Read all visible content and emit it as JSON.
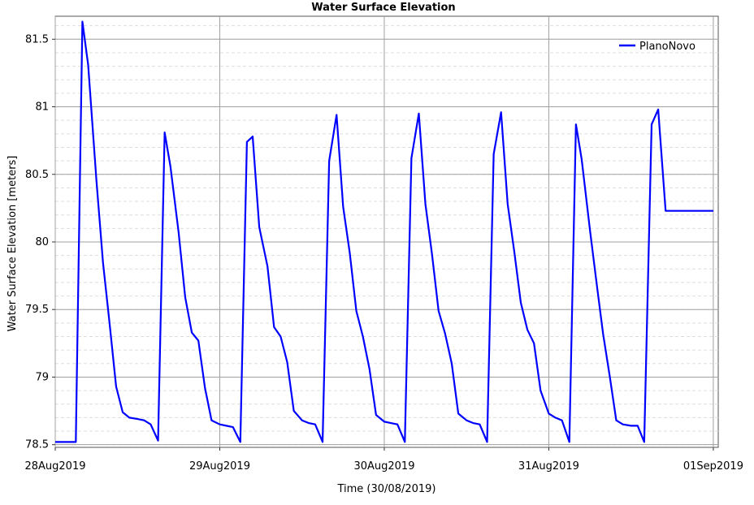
{
  "chart_data": {
    "type": "line",
    "title": "Water Surface Elevation",
    "xlabel": "Time (30/08/2019)",
    "ylabel": "Water Surface Elevation [meters]",
    "x_tick_labels": [
      "28Aug2019",
      "29Aug2019",
      "30Aug2019",
      "31Aug2019",
      "01Sep2019"
    ],
    "y_tick_labels": [
      "78.5",
      "79",
      "79.5",
      "80",
      "80.5",
      "81",
      "81.5"
    ],
    "x_unit": "days since 28Aug2019 00:00",
    "xlim": [
      0,
      4.03
    ],
    "ylim": [
      78.48,
      81.67
    ],
    "grid": true,
    "legend_position": "top-right",
    "colors": {
      "series": "#0000ff",
      "grid_major": "#a0a0a0",
      "grid_minor": "#dddddd"
    },
    "series": [
      {
        "name": "PlanoNovo",
        "x": [
          0.0,
          0.125,
          0.165,
          0.2,
          0.25,
          0.29,
          0.33,
          0.37,
          0.41,
          0.45,
          0.5,
          0.54,
          0.58,
          0.625,
          0.665,
          0.7,
          0.75,
          0.79,
          0.83,
          0.87,
          0.91,
          0.95,
          1.0,
          1.04,
          1.08,
          1.125,
          1.165,
          1.2,
          1.24,
          1.29,
          1.33,
          1.37,
          1.41,
          1.45,
          1.5,
          1.54,
          1.58,
          1.625,
          1.665,
          1.71,
          1.75,
          1.79,
          1.83,
          1.87,
          1.91,
          1.95,
          2.0,
          2.04,
          2.08,
          2.125,
          2.165,
          2.21,
          2.25,
          2.29,
          2.33,
          2.37,
          2.41,
          2.45,
          2.5,
          2.54,
          2.58,
          2.625,
          2.665,
          2.71,
          2.75,
          2.79,
          2.83,
          2.87,
          2.91,
          2.95,
          3.0,
          3.04,
          3.08,
          3.125,
          3.165,
          3.2,
          3.25,
          3.29,
          3.33,
          3.37,
          3.41,
          3.45,
          3.5,
          3.54,
          3.58,
          3.625,
          3.665,
          3.71,
          3.75,
          3.79,
          3.83,
          3.87,
          3.91,
          3.95,
          4.0
        ],
        "values": [
          78.52,
          78.52,
          81.63,
          81.31,
          80.46,
          79.85,
          79.4,
          78.93,
          78.74,
          78.7,
          78.69,
          78.68,
          78.65,
          78.53,
          80.81,
          80.56,
          80.07,
          79.59,
          79.33,
          79.27,
          78.92,
          78.68,
          78.65,
          78.64,
          78.63,
          78.52,
          80.74,
          80.78,
          80.11,
          79.82,
          79.37,
          79.3,
          79.11,
          78.75,
          78.68,
          78.66,
          78.65,
          78.52,
          80.6,
          80.94,
          80.26,
          79.92,
          79.49,
          79.3,
          79.06,
          78.72,
          78.67,
          78.66,
          78.65,
          78.52,
          80.62,
          80.95,
          80.28,
          79.91,
          79.49,
          79.32,
          79.1,
          78.73,
          78.68,
          78.66,
          78.65,
          78.52,
          80.65,
          80.96,
          80.28,
          79.93,
          79.55,
          79.35,
          79.25,
          78.9,
          78.73,
          78.7,
          78.68,
          78.52,
          80.87,
          80.61,
          80.09,
          79.7,
          79.32,
          79.01,
          78.68,
          78.65,
          78.64,
          78.64,
          78.52,
          80.87,
          80.98,
          80.23,
          80.23,
          80.23,
          80.23,
          80.23,
          80.23,
          80.23,
          80.23
        ]
      }
    ]
  }
}
